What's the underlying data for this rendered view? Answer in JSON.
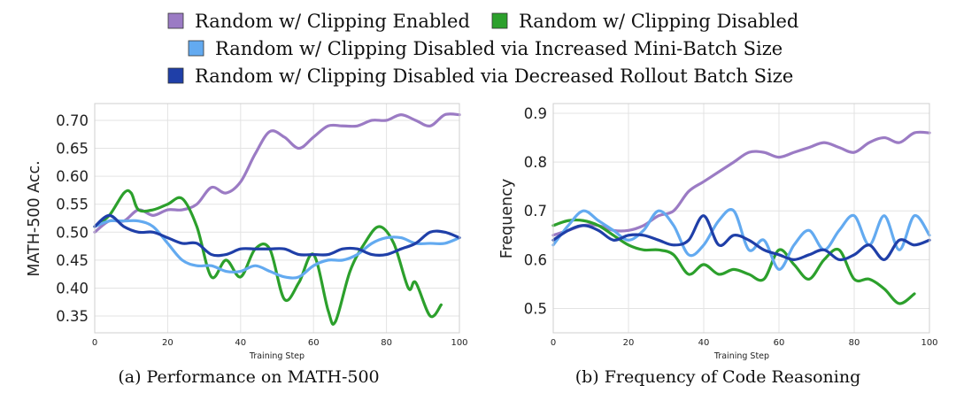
{
  "legend": {
    "items": [
      {
        "label": "Random w/ Clipping Enabled",
        "color": "#9b7bc4"
      },
      {
        "label": "Random w/ Clipping Disabled",
        "color": "#2ca02c"
      },
      {
        "label": "Random w/ Clipping Disabled via Increased Mini-Batch Size",
        "color": "#63aaf0"
      },
      {
        "label": "Random w/ Clipping Disabled via Decreased Rollout Batch Size",
        "color": "#1f3fa8"
      }
    ]
  },
  "chart_data": [
    {
      "type": "line",
      "caption": "(a) Performance on MATH-500",
      "xlabel": "Training Step",
      "ylabel": "MATH-500 Acc.",
      "xlim": [
        0,
        100
      ],
      "ylim": [
        0.32,
        0.73
      ],
      "xticks": [
        0,
        20,
        40,
        60,
        80,
        100
      ],
      "yticks": [
        0.35,
        0.4,
        0.45,
        0.5,
        0.55,
        0.6,
        0.65,
        0.7
      ],
      "grid": true,
      "series": [
        {
          "name": "Random w/ Clipping Enabled",
          "color": "#9b7bc4",
          "x": [
            0,
            4,
            8,
            12,
            16,
            20,
            24,
            28,
            32,
            36,
            40,
            44,
            48,
            52,
            56,
            60,
            64,
            68,
            72,
            76,
            80,
            84,
            88,
            92,
            96,
            100
          ],
          "y": [
            0.5,
            0.52,
            0.52,
            0.54,
            0.53,
            0.54,
            0.54,
            0.55,
            0.58,
            0.57,
            0.59,
            0.64,
            0.68,
            0.67,
            0.65,
            0.67,
            0.69,
            0.69,
            0.69,
            0.7,
            0.7,
            0.71,
            0.7,
            0.69,
            0.71,
            0.71
          ]
        },
        {
          "name": "Random w/ Clipping Disabled",
          "color": "#2ca02c",
          "x": [
            0,
            4,
            8,
            10,
            12,
            16,
            20,
            24,
            28,
            32,
            36,
            40,
            44,
            48,
            52,
            56,
            60,
            64,
            66,
            70,
            74,
            78,
            82,
            86,
            88,
            92,
            95
          ],
          "y": [
            0.51,
            0.53,
            0.57,
            0.57,
            0.54,
            0.54,
            0.55,
            0.56,
            0.51,
            0.42,
            0.45,
            0.42,
            0.47,
            0.47,
            0.38,
            0.41,
            0.46,
            0.36,
            0.34,
            0.43,
            0.48,
            0.51,
            0.48,
            0.4,
            0.41,
            0.35,
            0.37
          ]
        },
        {
          "name": "Random w/ Clipping Disabled via Increased Mini-Batch Size",
          "color": "#63aaf0",
          "x": [
            0,
            4,
            8,
            12,
            16,
            20,
            24,
            28,
            32,
            36,
            40,
            44,
            48,
            52,
            56,
            60,
            64,
            68,
            72,
            76,
            80,
            84,
            88,
            92,
            96,
            100
          ],
          "y": [
            0.51,
            0.52,
            0.52,
            0.52,
            0.51,
            0.48,
            0.45,
            0.44,
            0.44,
            0.43,
            0.43,
            0.44,
            0.43,
            0.42,
            0.42,
            0.44,
            0.45,
            0.45,
            0.46,
            0.48,
            0.49,
            0.49,
            0.48,
            0.48,
            0.48,
            0.49
          ]
        },
        {
          "name": "Random w/ Clipping Disabled via Decreased Rollout Batch Size",
          "color": "#1f3fa8",
          "x": [
            0,
            4,
            8,
            12,
            16,
            20,
            24,
            28,
            32,
            36,
            40,
            44,
            48,
            52,
            56,
            60,
            64,
            68,
            72,
            76,
            80,
            84,
            88,
            92,
            96,
            100
          ],
          "y": [
            0.51,
            0.53,
            0.51,
            0.5,
            0.5,
            0.49,
            0.48,
            0.48,
            0.46,
            0.46,
            0.47,
            0.47,
            0.47,
            0.47,
            0.46,
            0.46,
            0.46,
            0.47,
            0.47,
            0.46,
            0.46,
            0.47,
            0.48,
            0.5,
            0.5,
            0.49
          ]
        }
      ]
    },
    {
      "type": "line",
      "caption": "(b) Frequency of Code Reasoning",
      "xlabel": "Training Step",
      "ylabel": "Frequency",
      "xlim": [
        0,
        100
      ],
      "ylim": [
        0.45,
        0.92
      ],
      "xticks": [
        0,
        20,
        40,
        60,
        80,
        100
      ],
      "yticks": [
        0.5,
        0.6,
        0.7,
        0.8,
        0.9
      ],
      "grid": true,
      "series": [
        {
          "name": "Random w/ Clipping Enabled",
          "color": "#9b7bc4",
          "x": [
            0,
            4,
            8,
            12,
            16,
            20,
            24,
            28,
            32,
            36,
            40,
            44,
            48,
            52,
            56,
            60,
            64,
            68,
            72,
            76,
            80,
            84,
            88,
            92,
            96,
            100
          ],
          "y": [
            0.65,
            0.66,
            0.67,
            0.67,
            0.66,
            0.66,
            0.67,
            0.69,
            0.7,
            0.74,
            0.76,
            0.78,
            0.8,
            0.82,
            0.82,
            0.81,
            0.82,
            0.83,
            0.84,
            0.83,
            0.82,
            0.84,
            0.85,
            0.84,
            0.86,
            0.86
          ]
        },
        {
          "name": "Random w/ Clipping Disabled",
          "color": "#2ca02c",
          "x": [
            0,
            4,
            8,
            12,
            16,
            20,
            24,
            28,
            32,
            36,
            40,
            44,
            48,
            52,
            56,
            60,
            64,
            68,
            72,
            76,
            80,
            84,
            88,
            92,
            96
          ],
          "y": [
            0.67,
            0.68,
            0.68,
            0.67,
            0.65,
            0.63,
            0.62,
            0.62,
            0.61,
            0.57,
            0.59,
            0.57,
            0.58,
            0.57,
            0.56,
            0.62,
            0.59,
            0.56,
            0.6,
            0.62,
            0.56,
            0.56,
            0.54,
            0.51,
            0.53
          ]
        },
        {
          "name": "Random w/ Clipping Disabled via Increased Mini-Batch Size",
          "color": "#63aaf0",
          "x": [
            0,
            4,
            8,
            12,
            16,
            20,
            24,
            28,
            32,
            36,
            40,
            44,
            48,
            52,
            56,
            60,
            64,
            68,
            72,
            76,
            80,
            84,
            88,
            92,
            96,
            100
          ],
          "y": [
            0.63,
            0.67,
            0.7,
            0.68,
            0.66,
            0.64,
            0.66,
            0.7,
            0.67,
            0.61,
            0.63,
            0.68,
            0.7,
            0.62,
            0.64,
            0.58,
            0.63,
            0.66,
            0.62,
            0.66,
            0.69,
            0.63,
            0.69,
            0.62,
            0.69,
            0.65
          ]
        },
        {
          "name": "Random w/ Clipping Disabled via Decreased Rollout Batch Size",
          "color": "#1f3fa8",
          "x": [
            0,
            4,
            8,
            12,
            16,
            20,
            24,
            28,
            32,
            36,
            40,
            44,
            48,
            52,
            56,
            60,
            64,
            68,
            72,
            76,
            80,
            84,
            88,
            92,
            96,
            100
          ],
          "y": [
            0.64,
            0.66,
            0.67,
            0.66,
            0.64,
            0.65,
            0.65,
            0.64,
            0.63,
            0.64,
            0.69,
            0.63,
            0.65,
            0.64,
            0.62,
            0.61,
            0.6,
            0.61,
            0.62,
            0.6,
            0.61,
            0.63,
            0.6,
            0.64,
            0.63,
            0.64
          ]
        }
      ]
    }
  ]
}
